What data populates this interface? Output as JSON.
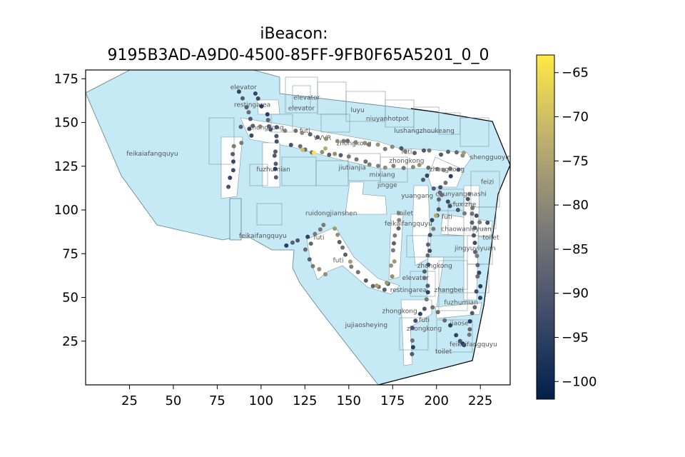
{
  "title": {
    "line1": "iBeacon:",
    "line2": "9195B3AD-A9D0-4500-85FF-9FB0F65A5201_0_0"
  },
  "chart_data": {
    "type": "scatter",
    "xlim": [
      0,
      242
    ],
    "ylim": [
      0,
      180
    ],
    "x_ticks": [
      25,
      50,
      75,
      100,
      125,
      150,
      175,
      200,
      225
    ],
    "y_ticks": [
      25,
      50,
      75,
      100,
      125,
      150,
      175
    ],
    "colorbar": {
      "colormap": "cividis",
      "range": [
        -102,
        -63
      ],
      "ticks": [
        -65,
        -70,
        -75,
        -80,
        -85,
        -90,
        -95,
        -100
      ]
    },
    "floor_color": "#c5e9f5",
    "labels": [
      {
        "text": "elevator",
        "x": 90,
        "y": 169
      },
      {
        "text": "elevator",
        "x": 126,
        "y": 163
      },
      {
        "text": "elevator",
        "x": 123,
        "y": 157
      },
      {
        "text": "restingarea",
        "x": 95,
        "y": 159
      },
      {
        "text": "zhongkong",
        "x": 103,
        "y": 146
      },
      {
        "text": "futi",
        "x": 125,
        "y": 144
      },
      {
        "text": "luyu",
        "x": 155,
        "y": 156
      },
      {
        "text": "niuyanhotpot",
        "x": 172,
        "y": 151
      },
      {
        "text": "lushangzhoukeang",
        "x": 193,
        "y": 144
      },
      {
        "text": "VVVR",
        "x": 135,
        "y": 140
      },
      {
        "text": "zhongkong",
        "x": 153,
        "y": 137
      },
      {
        "text": "futi",
        "x": 183,
        "y": 132
      },
      {
        "text": "zhongkong",
        "x": 183,
        "y": 127
      },
      {
        "text": "zhongkong",
        "x": 206,
        "y": 122
      },
      {
        "text": "shengguoying",
        "x": 232,
        "y": 129
      },
      {
        "text": "feikaiafangquyu",
        "x": 38,
        "y": 131
      },
      {
        "text": "fuzhumian",
        "x": 107,
        "y": 122
      },
      {
        "text": "jiutianjia",
        "x": 152,
        "y": 123
      },
      {
        "text": "mixiang",
        "x": 169,
        "y": 119
      },
      {
        "text": "jingge",
        "x": 172,
        "y": 113
      },
      {
        "text": "feizi",
        "x": 229,
        "y": 115
      },
      {
        "text": "yuangang",
        "x": 189,
        "y": 107
      },
      {
        "text": "chunyangmashi",
        "x": 214,
        "y": 108
      },
      {
        "text": "fuxizhe",
        "x": 216,
        "y": 102
      },
      {
        "text": "ruidongjianshen",
        "x": 140,
        "y": 97
      },
      {
        "text": "toilet",
        "x": 182,
        "y": 97
      },
      {
        "text": "feikaifangquyu",
        "x": 184,
        "y": 91
      },
      {
        "text": "futi",
        "x": 206,
        "y": 95
      },
      {
        "text": "chaowanleyuan",
        "x": 217,
        "y": 88
      },
      {
        "text": "toilet",
        "x": 231,
        "y": 83
      },
      {
        "text": "feikaifangquyu",
        "x": 101,
        "y": 84
      },
      {
        "text": "futi",
        "x": 133,
        "y": 83
      },
      {
        "text": "jingyuyiyuan",
        "x": 222,
        "y": 77
      },
      {
        "text": "futi",
        "x": 144,
        "y": 70
      },
      {
        "text": "zhongkong",
        "x": 199,
        "y": 67
      },
      {
        "text": "elevator",
        "x": 188,
        "y": 60
      },
      {
        "text": "restingarea",
        "x": 184,
        "y": 53
      },
      {
        "text": "zhangbei",
        "x": 207,
        "y": 53
      },
      {
        "text": "fuzhumian",
        "x": 214,
        "y": 46
      },
      {
        "text": "zhongkong",
        "x": 179,
        "y": 41
      },
      {
        "text": "futi",
        "x": 193,
        "y": 36
      },
      {
        "text": "jujiaosheying",
        "x": 160,
        "y": 33
      },
      {
        "text": "jiaose",
        "x": 213,
        "y": 34
      },
      {
        "text": "zhongkong",
        "x": 193,
        "y": 31
      },
      {
        "text": "feikaifangquyu",
        "x": 221,
        "y": 22
      },
      {
        "text": "toilet",
        "x": 204,
        "y": 18
      }
    ]
  }
}
